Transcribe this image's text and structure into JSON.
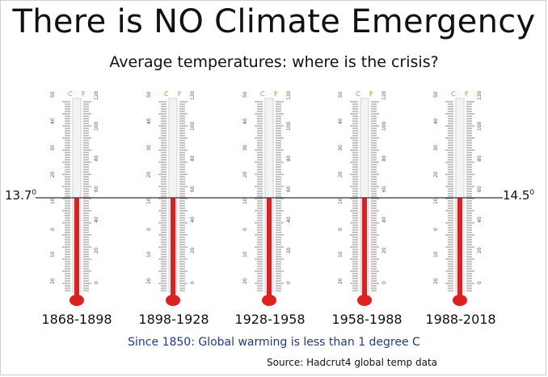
{
  "title": "There is NO Climate Emergency",
  "subtitle": "Average temperatures: where is the crisis?",
  "left_label": "13.7",
  "left_label_sup": "0",
  "right_label": "14.5",
  "right_label_sup": "0",
  "scale_headers": {
    "celsius": "C",
    "fahrenheit": "F"
  },
  "celsius_ticks": [
    "50",
    "40",
    "30",
    "20",
    "10",
    "0",
    "10",
    "20"
  ],
  "fahrenheit_ticks": [
    "120",
    "100",
    "80",
    "60",
    "40",
    "20",
    "0"
  ],
  "periods": [
    "1868-1898",
    "1898-1928",
    "1928-1958",
    "1958-1988",
    "1988-2018"
  ],
  "note": "Since 1850: Global warming is less than 1 degree C",
  "source": "Source: Hadcrut4 global temp data",
  "colors": {
    "mercury": "#e02020",
    "tube": "#d0d0d0",
    "ticks": "#888888",
    "scale_header": "#e08a20",
    "note": "#1f3a8a"
  }
}
